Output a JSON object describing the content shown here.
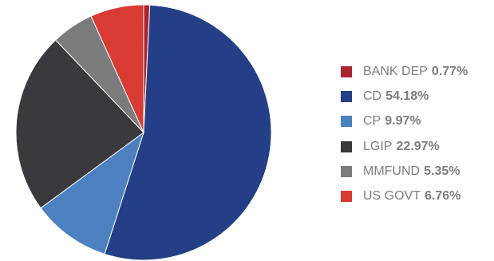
{
  "chart_data": {
    "type": "pie",
    "title": "",
    "legend_position": "right",
    "slices": [
      {
        "label": "BANK DEP",
        "value": 0.77,
        "display": "0.77%",
        "color": "#a8242e"
      },
      {
        "label": "CD",
        "value": 54.18,
        "display": "54.18%",
        "color": "#243f86"
      },
      {
        "label": "CP",
        "value": 9.97,
        "display": "9.97%",
        "color": "#4d80bf"
      },
      {
        "label": "LGIP",
        "value": 22.97,
        "display": "22.97%",
        "color": "#3a3a3e"
      },
      {
        "label": "MMFUND",
        "value": 5.35,
        "display": "5.35%",
        "color": "#7b7b7d"
      },
      {
        "label": "US GOVT",
        "value": 6.76,
        "display": "6.76%",
        "color": "#d83a34"
      }
    ]
  }
}
